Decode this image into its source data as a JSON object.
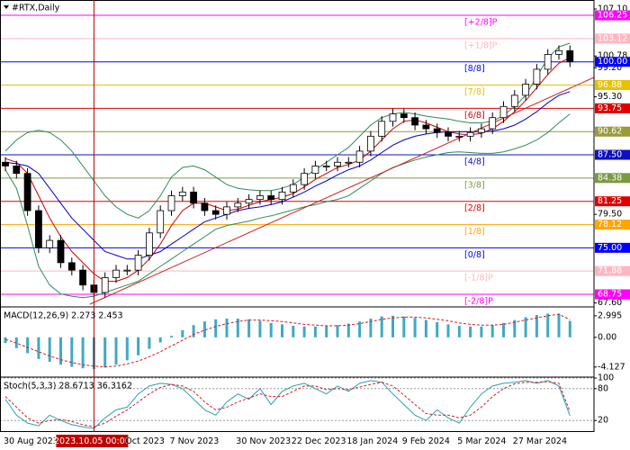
{
  "chart_data": [
    {
      "type": "candlestick",
      "title": "#RTX,Daily",
      "categories": [
        "30 Aug 2023",
        null,
        null,
        null,
        null,
        null,
        null,
        null,
        "2023.10.05 00:00",
        null,
        null,
        "Oct 2023",
        null,
        null,
        null,
        "7 Nov 2023",
        null,
        null,
        null,
        null,
        null,
        "30 Nov 2023",
        null,
        null,
        null,
        null,
        "22 Dec 2023",
        null,
        null,
        null,
        null,
        "18 Jan 2024",
        null,
        null,
        null,
        null,
        "9 Feb 2024",
        null,
        null,
        null,
        null,
        "5 Mar 2024",
        null,
        null,
        null,
        null,
        "27 Mar 2024",
        null,
        null,
        null,
        null,
        null
      ],
      "crosshair_at": 8,
      "open": [
        86.5,
        86,
        85,
        80,
        75,
        76,
        73,
        72,
        70,
        69,
        71,
        72,
        72,
        74,
        77,
        80,
        82,
        82.5,
        81,
        80,
        79.5,
        80.5,
        81,
        81.5,
        82,
        81.5,
        82.5,
        83.5,
        85,
        86,
        86,
        86.5,
        86.5,
        88,
        90,
        92,
        93,
        92.5,
        91.5,
        91,
        90.5,
        90,
        90,
        90.5,
        91,
        92.5,
        94,
        95.5,
        97,
        99,
        101,
        101.5
      ],
      "high": [
        87.2,
        86.7,
        85.7,
        80.7,
        76.7,
        76.7,
        73.7,
        72.7,
        70.7,
        71.7,
        72.7,
        72.7,
        74.7,
        77.7,
        80.7,
        82.7,
        83.2,
        83.2,
        81.7,
        80.7,
        81.2,
        81.7,
        82.2,
        82.7,
        82.7,
        83.2,
        84.2,
        85.7,
        86.7,
        86.7,
        87.2,
        87.2,
        88.7,
        90.7,
        92.7,
        93.7,
        93.7,
        93.2,
        92.2,
        91.7,
        91.2,
        90.7,
        91.2,
        91.7,
        93.2,
        94.7,
        96.2,
        97.7,
        99.7,
        101.7,
        102.2,
        102.2
      ],
      "low": [
        85.3,
        84.3,
        79.3,
        74.3,
        74.3,
        72.3,
        71.3,
        69.3,
        68.3,
        68.3,
        70.3,
        71.3,
        71.3,
        73.3,
        76.3,
        79.3,
        81.3,
        80.3,
        79.3,
        78.8,
        78.8,
        79.8,
        80.3,
        80.8,
        80.8,
        80.8,
        81.8,
        82.8,
        84.3,
        85.3,
        85.3,
        85.8,
        85.8,
        87.3,
        89.3,
        91.3,
        91.8,
        90.8,
        90.3,
        89.8,
        89.3,
        89.3,
        89.3,
        89.8,
        90.3,
        91.8,
        93.3,
        94.8,
        96.3,
        98.3,
        100.3,
        99.3
      ],
      "close": [
        86,
        85,
        80,
        75,
        76,
        73,
        72,
        70,
        69,
        71,
        72,
        72,
        74,
        77,
        80,
        82,
        82.5,
        81,
        80,
        79.5,
        80.5,
        81,
        81.5,
        82,
        81.5,
        82.5,
        83.5,
        85,
        86,
        86,
        86.5,
        86.5,
        88,
        90,
        92,
        93,
        92.5,
        91.5,
        91,
        90.5,
        90,
        90,
        90.5,
        91,
        92.5,
        94,
        95.5,
        97,
        99,
        101,
        101.5,
        100
      ],
      "series": [
        {
          "color": "#2e8b57",
          "values": [
            88,
            89.5,
            90.5,
            90.8,
            90.5,
            89.5,
            88,
            86,
            84,
            82,
            80.5,
            79.5,
            79,
            80,
            82,
            84.5,
            85.8,
            86,
            85.5,
            84.5,
            83.5,
            83,
            82.8,
            82.7,
            82.7,
            83,
            83.5,
            84.5,
            85.5,
            86.5,
            87.5,
            88.5,
            90,
            91.5,
            92.5,
            93,
            93.2,
            93,
            92.7,
            92.5,
            92.3,
            92,
            91.8,
            91.8,
            92,
            92.8,
            94,
            95.5,
            98,
            100.5,
            102,
            102.5
          ]
        },
        {
          "color": "#2e8b57",
          "values": [
            85.5,
            83,
            78,
            72.5,
            70,
            68.8,
            68.5,
            68.3,
            68.5,
            69,
            69.5,
            70,
            70.5,
            71.5,
            72.5,
            73.5,
            74.5,
            75.5,
            76.5,
            77.5,
            78,
            78.3,
            78.6,
            79,
            79.3,
            79.7,
            80.1,
            80.5,
            80.8,
            81.2,
            81.5,
            82,
            83,
            84,
            85,
            85.8,
            86.3,
            86.8,
            87.2,
            87.5,
            87.8,
            87.9,
            87.8,
            87.7,
            87.7,
            87.9,
            88.3,
            88.8,
            89.5,
            90.5,
            91.8,
            93
          ]
        },
        {
          "color": "#cc0000",
          "values": [
            87,
            86.5,
            85,
            82,
            79,
            76.5,
            74.5,
            73,
            71.5,
            70.5,
            70.5,
            71,
            72,
            73.5,
            75.5,
            78,
            80,
            81,
            81,
            80.5,
            80,
            80.2,
            80.7,
            81.2,
            81.5,
            81.8,
            82.3,
            83.2,
            84.2,
            85,
            85.8,
            86.2,
            86.8,
            88,
            89.5,
            91,
            92,
            92.2,
            91.8,
            91.2,
            90.6,
            90.3,
            90.2,
            90.4,
            91,
            92,
            93.3,
            94.8,
            96.5,
            98.3,
            99.8,
            100.6
          ]
        },
        {
          "color": "#0000cc",
          "values": [
            86.5,
            86.3,
            86,
            85,
            83,
            81,
            79,
            77.5,
            76,
            74.5,
            74,
            73.5,
            73.5,
            74,
            74.5,
            75.5,
            76.5,
            77.5,
            78.5,
            79,
            79.5,
            80,
            80.3,
            80.5,
            80.8,
            81.2,
            81.8,
            82.5,
            83.3,
            84,
            84.8,
            85.5,
            86,
            86.8,
            87.8,
            88.8,
            89.5,
            90,
            90.3,
            90.5,
            90.6,
            90.6,
            90.6,
            90.6,
            90.7,
            91,
            91.5,
            92.3,
            93.3,
            94.5,
            95.5,
            96
          ]
        }
      ],
      "levels": [
        {
          "value": 106.25,
          "tag": "[+2/8]P",
          "color": "#ff00ff"
        },
        {
          "value": 103.12,
          "tag": "[+1/8]P",
          "color": "#ffb6c1"
        },
        {
          "value": 100,
          "label": "100.00",
          "tag": "[8/8]",
          "color": "#0000ff"
        },
        {
          "value": 96.88,
          "tag": "[7/8]",
          "color": "#e6c200"
        },
        {
          "value": 93.75,
          "tag": "[6/8]",
          "color": "#e00000"
        },
        {
          "value": 90.62,
          "color": "#9a9a3a"
        },
        {
          "value": 87.5,
          "label": "87.50",
          "tag": "[4/8]",
          "color": "#1010c0"
        },
        {
          "value": 84.38,
          "tag": "[3/8]",
          "color": "#7a9a40"
        },
        {
          "value": 81.25,
          "tag": "[2/8]",
          "color": "#e00000"
        },
        {
          "value": 78.12,
          "tag": "[1/8]",
          "color": "#ffa500"
        },
        {
          "value": 75,
          "label": "75.00",
          "tag": "[0/8]",
          "color": "#0000ff"
        },
        {
          "value": 71.88,
          "tag": "[-1/8]P",
          "color": "#ffb6c1"
        },
        {
          "value": 68.75,
          "tag": "[-2/8]P",
          "color": "#ff00ff"
        }
      ],
      "ylim": [
        67.18,
        108.31
      ],
      "yticks": [
        {
          "value": 107.1,
          "label": "107.10"
        },
        100.78,
        {
          "value": 99.2,
          "label": "99.20"
        },
        {
          "value": 95.3,
          "label": "95.30"
        },
        {
          "value": 79.5,
          "label": "79.50"
        },
        {
          "value": 67.6,
          "label": "67.60"
        }
      ]
    },
    {
      "type": "bar",
      "title": "MACD(12,26,9) 2.273 2.453",
      "color": "#3fa9c4",
      "values": [
        -0.8,
        -1.5,
        -2.2,
        -3,
        -3.4,
        -3.8,
        -4.1,
        -4.3,
        -4.4,
        -4.2,
        -3.8,
        -3.2,
        -2.5,
        -1.6,
        -0.7,
        0.2,
        1,
        1.7,
        2.2,
        2.5,
        2.6,
        2.6,
        2.5,
        2.3,
        2,
        1.8,
        1.6,
        1.5,
        1.5,
        1.6,
        1.7,
        1.9,
        2.2,
        2.6,
        2.9,
        3,
        2.9,
        2.7,
        2.4,
        2.1,
        1.8,
        1.6,
        1.5,
        1.5,
        1.7,
        2,
        2.4,
        2.8,
        3.1,
        3.3,
        3.3,
        2.273
      ],
      "series": [
        {
          "color": "#d02020",
          "dashed": true,
          "values": [
            -0.3,
            -0.8,
            -1.4,
            -2,
            -2.6,
            -3.1,
            -3.5,
            -3.8,
            -4,
            -4.1,
            -4,
            -3.7,
            -3.3,
            -2.7,
            -2,
            -1.2,
            -0.4,
            0.4,
            1,
            1.5,
            1.9,
            2.2,
            2.4,
            2.4,
            2.3,
            2.2,
            2,
            1.8,
            1.7,
            1.6,
            1.6,
            1.7,
            1.9,
            2.2,
            2.5,
            2.7,
            2.8,
            2.8,
            2.7,
            2.5,
            2.3,
            2,
            1.8,
            1.7,
            1.7,
            1.8,
            2.1,
            2.4,
            2.7,
            3,
            3.2,
            2.453
          ]
        }
      ],
      "ylim": [
        -5.4,
        4.1
      ],
      "yticks": [
        2.995,
        {
          "value": 0,
          "label": "0.00"
        },
        -4.127
      ]
    },
    {
      "type": "line",
      "title": "Stoch(5,3,3) 28.6713 36.3162",
      "series": [
        {
          "color": "#2aa0b0",
          "values": [
            60,
            30,
            15,
            10,
            30,
            20,
            12,
            8,
            5,
            25,
            40,
            45,
            70,
            85,
            90,
            88,
            80,
            60,
            40,
            30,
            55,
            70,
            60,
            80,
            50,
            75,
            85,
            90,
            80,
            70,
            85,
            75,
            90,
            95,
            92,
            70,
            50,
            30,
            20,
            40,
            25,
            15,
            45,
            70,
            85,
            90,
            92,
            95,
            90,
            95,
            85,
            28.6713
          ]
        },
        {
          "color": "#d02020",
          "dashed": true,
          "values": [
            65,
            45,
            25,
            15,
            20,
            22,
            18,
            12,
            8,
            15,
            28,
            40,
            55,
            70,
            82,
            88,
            85,
            75,
            55,
            40,
            45,
            55,
            62,
            70,
            65,
            65,
            75,
            85,
            85,
            78,
            80,
            78,
            83,
            88,
            92,
            85,
            68,
            50,
            33,
            30,
            30,
            25,
            30,
            45,
            65,
            80,
            89,
            92,
            92,
            93,
            90,
            36.3162
          ]
        }
      ],
      "ylim": [
        0,
        100
      ],
      "yticks": [
        100,
        80,
        20
      ],
      "grid": true
    }
  ]
}
